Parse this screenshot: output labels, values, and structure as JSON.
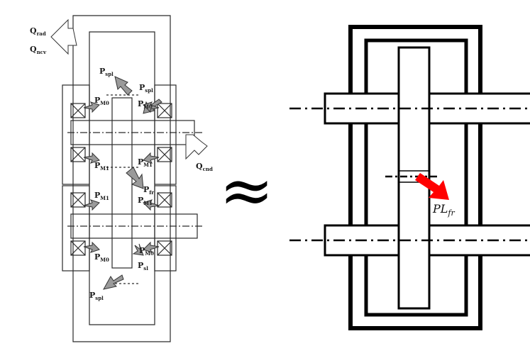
{
  "left_figure": {
    "labels": {
      "q_rad": {
        "main": "Q",
        "sub": "rad"
      },
      "q_ncv": {
        "main": "Q",
        "sub": "ncv"
      },
      "q_cnd": {
        "main": "Q",
        "sub": "cnd"
      },
      "p_spl_top": {
        "main": "P",
        "sub": "spl"
      },
      "p_spl_right": {
        "main": "P",
        "sub": "spl"
      },
      "p_spl_bottom": {
        "main": "P",
        "sub": "spl"
      },
      "p_m0_upper_left": {
        "main": "P",
        "sub": "M0"
      },
      "p_m0_upper_right": {
        "main": "P",
        "sub": "M0"
      },
      "p_m1_upper_left": {
        "main": "P",
        "sub": "M1"
      },
      "p_m1_upper_right": {
        "main": "P",
        "sub": "M1"
      },
      "p_fr": {
        "main": "P",
        "sub": "fr"
      },
      "p_m1_lower_left": {
        "main": "P",
        "sub": "M1"
      },
      "p_m1_lower_right": {
        "main": "P",
        "sub": "M1"
      },
      "p_m0_lower_left": {
        "main": "P",
        "sub": "M0"
      },
      "p_m0_lower_right": {
        "main": "P",
        "sub": "M0"
      },
      "p_sl": {
        "main": "P",
        "sub": "sl"
      }
    }
  },
  "approx_symbol": "≈",
  "right_figure": {
    "label": {
      "main": "PL",
      "sub": "fr"
    },
    "arrow_color": "#ff0000"
  }
}
